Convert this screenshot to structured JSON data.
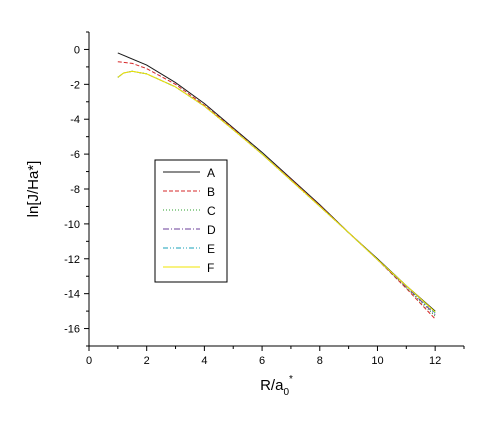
{
  "chart_data": {
    "type": "line",
    "title": "",
    "xlabel": "R/a",
    "xlabel_sub": "0",
    "xlabel_sup": "*",
    "ylabel": "ln[J/Ha*]",
    "xlim": [
      0,
      13
    ],
    "ylim": [
      -17,
      1
    ],
    "xticks": [
      0,
      2,
      4,
      6,
      8,
      10,
      12
    ],
    "yticks": [
      0,
      -2,
      -4,
      -6,
      -8,
      -10,
      -12,
      -14,
      -16
    ],
    "grid": false,
    "legend_position": "left-center",
    "series": [
      {
        "name": "A",
        "color": "#1a1a1a",
        "dash": "",
        "x": [
          1.0,
          2.0,
          3.0,
          4.0,
          5.0,
          6.0,
          7.0,
          8.0,
          9.0,
          10.0,
          11.0,
          12.0
        ],
        "y": [
          -0.2,
          -0.9,
          -1.9,
          -3.1,
          -4.5,
          -5.9,
          -7.4,
          -8.9,
          -10.5,
          -12.0,
          -13.55,
          -15.0
        ]
      },
      {
        "name": "B",
        "color": "#d62728",
        "dash": "4,2",
        "x": [
          1.0,
          1.5,
          2.0,
          3.0,
          4.0,
          5.0,
          6.0,
          7.0,
          8.0,
          9.0,
          10.0,
          11.0,
          12.0
        ],
        "y": [
          -0.7,
          -0.8,
          -1.1,
          -2.0,
          -3.2,
          -4.55,
          -6.0,
          -7.45,
          -8.95,
          -10.5,
          -12.05,
          -13.7,
          -15.45
        ]
      },
      {
        "name": "C",
        "color": "#2ca02c",
        "dash": "1,2",
        "x": [
          1.0,
          1.2,
          1.5,
          2.0,
          3.0,
          4.0,
          5.0,
          6.0,
          7.0,
          8.0,
          9.0,
          10.0,
          11.0,
          12.0
        ],
        "y": [
          -1.6,
          -1.35,
          -1.25,
          -1.4,
          -2.15,
          -3.25,
          -4.6,
          -6.0,
          -7.5,
          -9.0,
          -10.5,
          -12.05,
          -13.65,
          -15.3
        ]
      },
      {
        "name": "D",
        "color": "#6a3d9a",
        "dash": "6,2,1,2",
        "x": [
          1.0,
          1.2,
          1.5,
          2.0,
          3.0,
          4.0,
          5.0,
          6.0,
          7.0,
          8.0,
          9.0,
          10.0,
          11.0,
          12.0
        ],
        "y": [
          -1.6,
          -1.35,
          -1.25,
          -1.4,
          -2.15,
          -3.25,
          -4.6,
          -6.0,
          -7.5,
          -9.0,
          -10.5,
          -12.05,
          -13.6,
          -15.2
        ]
      },
      {
        "name": "E",
        "color": "#17a2b8",
        "dash": "5,2,1,2,1,2",
        "x": [
          1.0,
          1.2,
          1.5,
          2.0,
          3.0,
          4.0,
          5.0,
          6.0,
          7.0,
          8.0,
          9.0,
          10.0,
          11.0,
          12.0
        ],
        "y": [
          -1.6,
          -1.35,
          -1.25,
          -1.4,
          -2.15,
          -3.25,
          -4.6,
          -6.0,
          -7.5,
          -9.0,
          -10.5,
          -12.05,
          -13.55,
          -15.1
        ]
      },
      {
        "name": "F",
        "color": "#f2e600",
        "dash": "",
        "x": [
          1.0,
          1.2,
          1.5,
          2.0,
          3.0,
          4.0,
          5.0,
          6.0,
          7.0,
          8.0,
          9.0,
          10.0,
          11.0,
          12.0
        ],
        "y": [
          -1.6,
          -1.35,
          -1.25,
          -1.4,
          -2.15,
          -3.25,
          -4.6,
          -6.0,
          -7.5,
          -9.0,
          -10.5,
          -12.05,
          -13.55,
          -15.05
        ]
      }
    ]
  }
}
